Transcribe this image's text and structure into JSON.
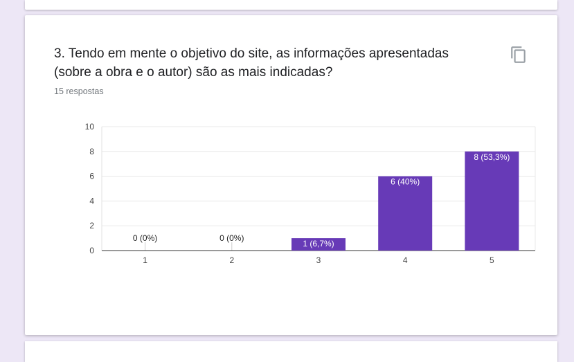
{
  "question": {
    "title": "3. Tendo em mente o objetivo do site, as informações apresentadas (sobre a obra e o autor) são as mais indicadas?",
    "responses": "15 respostas",
    "copy_icon": "copy-icon"
  },
  "colors": {
    "bar": "#673ab7",
    "background": "#ede7f6",
    "card": "#ffffff"
  },
  "chart_data": {
    "type": "bar",
    "categories": [
      "1",
      "2",
      "3",
      "4",
      "5"
    ],
    "values": [
      0,
      0,
      1,
      6,
      8
    ],
    "data_labels": [
      "0 (0%)",
      "0 (0%)",
      "1 (6,7%)",
      "6 (40%)",
      "8 (53,3%)"
    ],
    "yticks": [
      0,
      2,
      4,
      6,
      8,
      10
    ],
    "ylim": [
      0,
      10
    ],
    "grid": true
  }
}
